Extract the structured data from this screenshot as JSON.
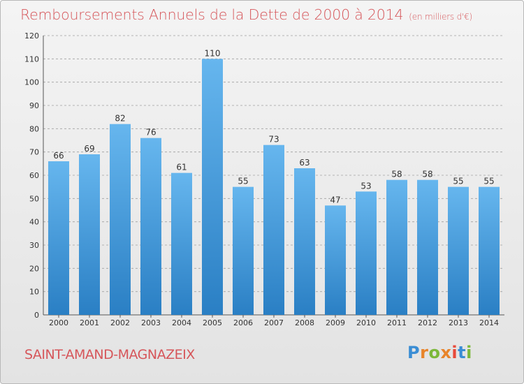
{
  "header": {
    "title": "Remboursements Annuels de la Dette de 2000 à 2014",
    "unit": "(en milliers d'€)"
  },
  "footer": {
    "commune": "SAINT-AMAND-MAGNAZEIX",
    "logo_text": "Proxiti"
  },
  "colors": {
    "title": "#d6565a",
    "bar_top": "#66b6ee",
    "bar_bottom": "#2a7fc4",
    "grid": "#a0a0a0",
    "logo_letters": [
      "#3a8dd4",
      "#e8842a",
      "#7cb83a",
      "#e8842a",
      "#e84a3a",
      "#3a8dd4",
      "#7cb83a"
    ]
  },
  "chart_data": {
    "type": "bar",
    "title": "Remboursements Annuels de la Dette de 2000 à 2014",
    "subtitle": "(en milliers d'€)",
    "xlabel": "",
    "ylabel": "",
    "categories": [
      "2000",
      "2001",
      "2002",
      "2003",
      "2004",
      "2005",
      "2006",
      "2007",
      "2008",
      "2009",
      "2010",
      "2011",
      "2012",
      "2013",
      "2014"
    ],
    "values": [
      66,
      69,
      82,
      76,
      61,
      110,
      55,
      73,
      63,
      47,
      53,
      58,
      58,
      55,
      55
    ],
    "ylim": [
      0,
      120
    ],
    "yticks": [
      0,
      10,
      20,
      30,
      40,
      50,
      60,
      70,
      80,
      90,
      100,
      110,
      120
    ],
    "grid": true,
    "data_labels": true
  }
}
